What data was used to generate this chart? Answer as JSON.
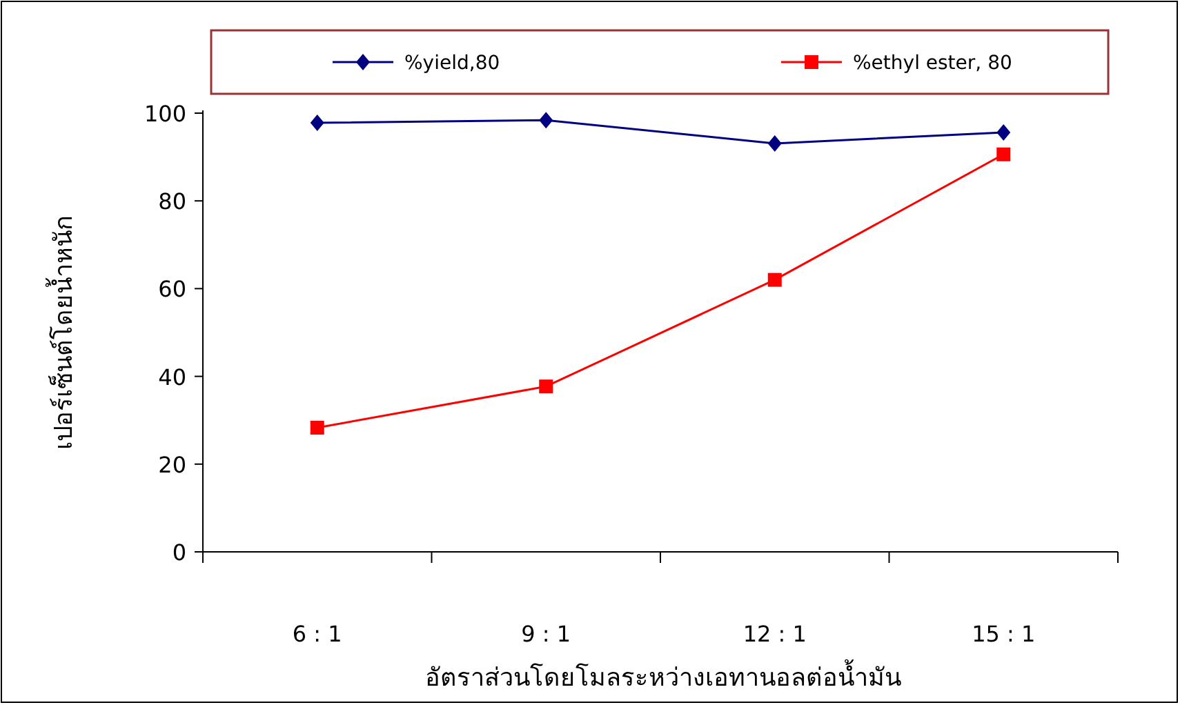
{
  "chart_data": {
    "type": "line",
    "xlabel": "อัตราส่วนโดยโมลระหว่างเอทานอลต่อน้ำมัน",
    "ylabel": "เปอร์เซ็นต์โดยน้ำหนัก",
    "categories": [
      "6 : 1",
      "9 : 1",
      "12 : 1",
      "15 : 1"
    ],
    "series": [
      {
        "name": "%yield,80",
        "color": "#000080",
        "values": [
          97.8,
          98.4,
          93.1,
          95.6
        ],
        "marker": "diamond"
      },
      {
        "name": "%ethyl ester,  80",
        "color": "#ff0000",
        "values": [
          28.3,
          37.7,
          62,
          90.6
        ],
        "marker": "square"
      }
    ],
    "ylim": [
      0,
      100
    ],
    "yticks": [
      0,
      20,
      40,
      60,
      80,
      100
    ],
    "grid": false,
    "legend": "top"
  }
}
